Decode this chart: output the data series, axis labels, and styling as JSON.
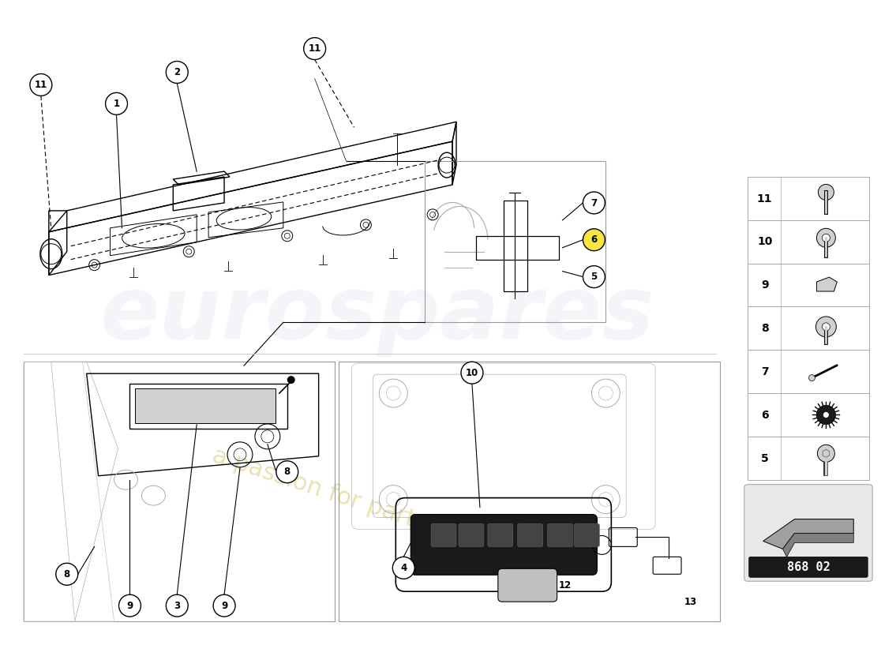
{
  "bg_color": "#ffffff",
  "line_color": "#000000",
  "watermark1": "eurospares",
  "watermark2": "a passion for parts since 1985",
  "part_number": "868 02",
  "parts_table": [
    11,
    10,
    9,
    8,
    7,
    6,
    5
  ],
  "callout_bg": "#ffffff",
  "callout_border": "#000000",
  "table_border": "#aaaaaa",
  "gray_bg": "#e0e0e0",
  "yellow_callout": "#f5e642"
}
